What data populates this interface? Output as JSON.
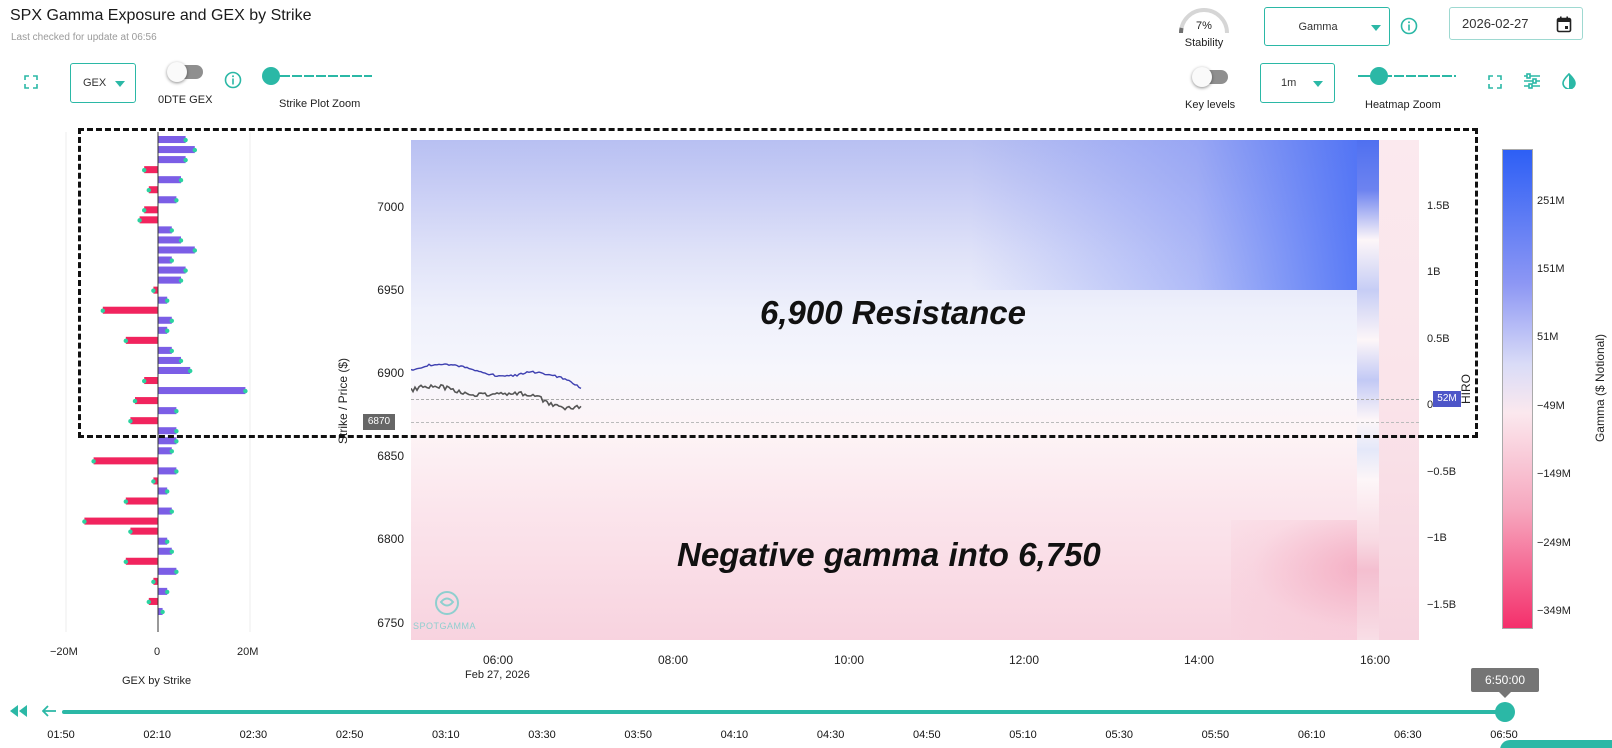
{
  "header": {
    "title": "SPX Gamma Exposure and GEX by Strike",
    "subtitle": "Last checked for update at 06:56"
  },
  "stability": {
    "value": "7%",
    "label": "Stability",
    "fraction": 0.07
  },
  "heatmap_metric_select": {
    "value": "Gamma"
  },
  "date_input": {
    "value": "2026-02-27"
  },
  "left_controls": {
    "gex_select": "GEX",
    "zero_dte_label": "0DTE GEX",
    "strike_zoom_label": "Strike Plot Zoom"
  },
  "right_controls": {
    "key_levels_label": "Key levels",
    "interval_select": "1m",
    "heatmap_zoom_label": "Heatmap Zoom"
  },
  "gex_chart": {
    "xlabel": "GEX by Strike",
    "x_ticks": [
      "−20M",
      "0",
      "20M"
    ]
  },
  "heatmap": {
    "ylabel": "Strike / Price ($)",
    "y_ticks": [
      "7000",
      "6950",
      "6900",
      "6850",
      "6800",
      "6750"
    ],
    "x_ticks": [
      "06:00",
      "08:00",
      "10:00",
      "12:00",
      "14:00",
      "16:00"
    ],
    "x_date": "Feb 27, 2026",
    "current_price_label": "6870",
    "hiro_label": "HIRO",
    "hiro_ticks": [
      "1.5B",
      "1B",
      "0.5B",
      "0",
      "−0.5B",
      "−1B",
      "−1.5B"
    ],
    "hiro_value_label": "52M",
    "watermark": "SPOTGAMMA",
    "annotation_resistance": "6,900 Resistance",
    "annotation_negative": "Negative gamma into 6,750"
  },
  "colorbar": {
    "label": "Gamma ($ Notional)",
    "ticks": [
      "251M",
      "151M",
      "51M",
      "−49M",
      "−149M",
      "−249M",
      "−349M"
    ]
  },
  "timeline": {
    "current_time": "6:50:00",
    "ticks": [
      "01:50",
      "02:10",
      "02:30",
      "02:50",
      "03:10",
      "03:30",
      "03:50",
      "04:10",
      "04:30",
      "04:50",
      "05:10",
      "05:30",
      "05:50",
      "06:10",
      "06:30",
      "06:50"
    ],
    "progress": 1.0
  },
  "colors": {
    "accent": "#2bb8a6",
    "positive_gex": "#7b5ee6",
    "negative_gex": "#f1245e",
    "hiro_line": "#3d3fb0",
    "price_line": "#555555"
  },
  "chart_data": {
    "type": "bar",
    "title": "",
    "xlabel": "GEX by Strike",
    "ylabel": "",
    "xlim": [
      -20000000,
      20000000
    ],
    "orientation": "horizontal",
    "values_millions": [
      6,
      8,
      6,
      -3,
      5,
      -2,
      4,
      -3,
      -4,
      3,
      5,
      8,
      3,
      6,
      5,
      -1,
      2,
      -12,
      3,
      2,
      -7,
      3,
      5,
      7,
      -3,
      19,
      -5,
      4,
      -6,
      4,
      4,
      3,
      -14,
      4,
      -1,
      2,
      -7,
      3,
      -16,
      -6,
      2,
      3,
      -7,
      4,
      -1,
      2,
      -2,
      1
    ]
  }
}
